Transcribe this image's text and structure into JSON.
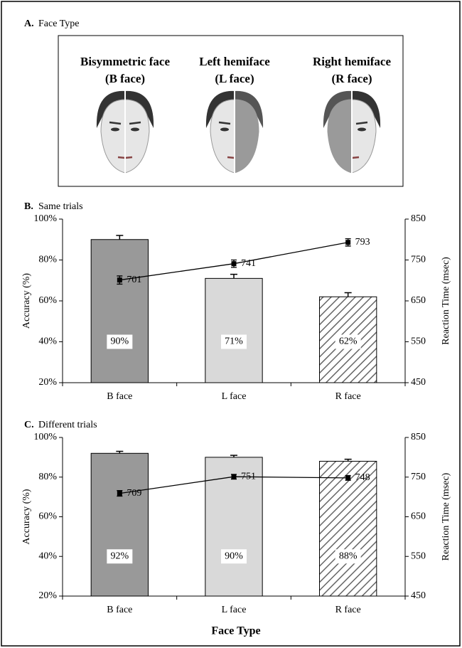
{
  "panel_a": {
    "label": "A.",
    "title": "Face Type",
    "faces": [
      {
        "name": "Bisymmetric face",
        "code": "(B face)"
      },
      {
        "name": "Left hemiface",
        "code": "(L face)"
      },
      {
        "name": "Right hemiface",
        "code": "(R face)"
      }
    ]
  },
  "shared_x_label": "Face Type",
  "chart_data": [
    {
      "type": "bar",
      "label": "B.",
      "title": "Same trials",
      "categories": [
        "B face",
        "L face",
        "R face"
      ],
      "ylabel": "Accuracy (%)",
      "y2label": "Reaction Time (msec)",
      "ylim": [
        20,
        100
      ],
      "yticks": [
        {
          "value": 20,
          "label": "20%"
        },
        {
          "value": 40,
          "label": "40%"
        },
        {
          "value": 60,
          "label": "60%"
        },
        {
          "value": 80,
          "label": "80%"
        },
        {
          "value": 100,
          "label": "100%"
        }
      ],
      "y2lim": [
        450,
        850
      ],
      "y2ticks": [
        450,
        550,
        650,
        750,
        850
      ],
      "series": [
        {
          "type": "bar",
          "values": [
            90,
            71,
            62
          ],
          "value_labels": [
            "90%",
            "71%",
            "62%"
          ],
          "errors": [
            2,
            2,
            2
          ],
          "fills": [
            "#999999",
            "#d9d9d9",
            "#ffffff"
          ],
          "hatch": [
            false,
            false,
            true
          ]
        },
        {
          "type": "line",
          "axis": "y2",
          "color": "#000000",
          "values": [
            701,
            741,
            793
          ],
          "errors": [
            10,
            9,
            9
          ]
        }
      ]
    },
    {
      "type": "bar",
      "label": "C.",
      "title": "Different trials",
      "categories": [
        "B face",
        "L face",
        "R face"
      ],
      "ylabel": "Accuracy (%)",
      "y2label": "Reaction Time (msec)",
      "ylim": [
        20,
        100
      ],
      "yticks": [
        {
          "value": 20,
          "label": "20%"
        },
        {
          "value": 40,
          "label": "40%"
        },
        {
          "value": 60,
          "label": "60%"
        },
        {
          "value": 80,
          "label": "80%"
        },
        {
          "value": 100,
          "label": "100%"
        }
      ],
      "y2lim": [
        450,
        850
      ],
      "y2ticks": [
        450,
        550,
        650,
        750,
        850
      ],
      "series": [
        {
          "type": "bar",
          "values": [
            92,
            90,
            88
          ],
          "value_labels": [
            "92%",
            "90%",
            "88%"
          ],
          "errors": [
            1,
            1,
            1
          ],
          "fills": [
            "#999999",
            "#d9d9d9",
            "#ffffff"
          ],
          "hatch": [
            false,
            false,
            true
          ]
        },
        {
          "type": "line",
          "axis": "y2",
          "color": "#000000",
          "values": [
            709,
            751,
            748
          ],
          "errors": [
            7,
            6,
            6
          ]
        }
      ]
    }
  ]
}
